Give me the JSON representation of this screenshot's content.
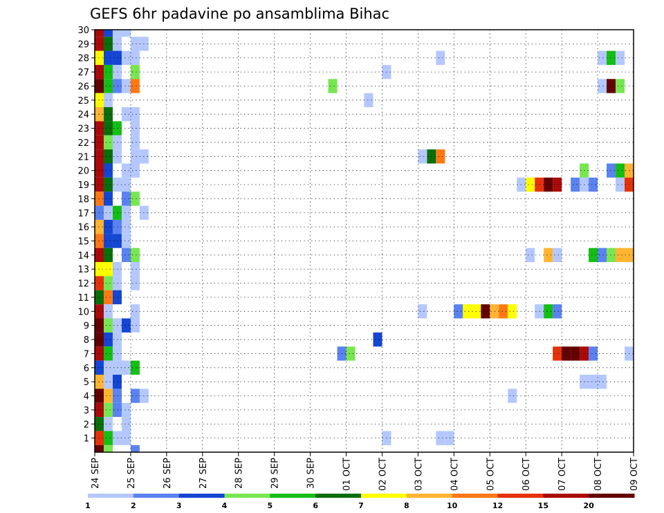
{
  "chart_data": {
    "type": "heatmap",
    "title": "GEFS 6hr padavine po ansamblima Bihac",
    "xlabel": "",
    "ylabel": "",
    "x_tick_labels": [
      "24 SEP",
      "25 SEP",
      "26 SEP",
      "27 SEP",
      "28 SEP",
      "29 SEP",
      "30 SEP",
      "01 OCT",
      "02 OCT",
      "03 OCT",
      "04 OCT",
      "05 OCT",
      "06 OCT",
      "07 OCT",
      "08 OCT",
      "09 OCT"
    ],
    "y_tick_labels": [
      "1",
      "2",
      "3",
      "4",
      "5",
      "6",
      "7",
      "8",
      "9",
      "10",
      "11",
      "12",
      "13",
      "14",
      "15",
      "16",
      "17",
      "18",
      "19",
      "20",
      "21",
      "22",
      "23",
      "24",
      "25",
      "26",
      "27",
      "28",
      "29",
      "30"
    ],
    "xlim": [
      0,
      60
    ],
    "ylim": [
      0,
      30
    ],
    "grid": "dotted",
    "colorbar": {
      "position": "bottom",
      "labels": [
        "1",
        "2",
        "3",
        "4",
        "5",
        "6",
        "7",
        "8",
        "10",
        "12",
        "15",
        "20"
      ],
      "colors": [
        "#b4c8ff",
        "#5a82f0",
        "#1446d2",
        "#78e650",
        "#14be14",
        "#0a6e0a",
        "#ffff00",
        "#ffb432",
        "#ff7814",
        "#e6320a",
        "#aa0a0a",
        "#640000"
      ]
    },
    "note_units": "x = 6-hour step index from 24 SEP 00h (4 steps per day); y = ensemble member; v = colour class index 0-11 matching colorbar.colors",
    "cells": [
      {
        "y": 30,
        "x": 0,
        "v": 10
      },
      {
        "y": 30,
        "x": 1,
        "v": 2
      },
      {
        "y": 30,
        "x": 2,
        "v": 0
      },
      {
        "y": 30,
        "x": 3,
        "v": 0
      },
      {
        "y": 29,
        "x": 0,
        "v": 10
      },
      {
        "y": 29,
        "x": 1,
        "v": 5
      },
      {
        "y": 29,
        "x": 2,
        "v": 0
      },
      {
        "y": 29,
        "x": 4,
        "v": 0
      },
      {
        "y": 29,
        "x": 5,
        "v": 0
      },
      {
        "y": 28,
        "x": 0,
        "v": 6
      },
      {
        "y": 28,
        "x": 1,
        "v": 2
      },
      {
        "y": 28,
        "x": 2,
        "v": 2
      },
      {
        "y": 28,
        "x": 3,
        "v": 0
      },
      {
        "y": 28,
        "x": 4,
        "v": 0
      },
      {
        "y": 28,
        "x": 38,
        "v": 0
      },
      {
        "y": 28,
        "x": 56,
        "v": 0
      },
      {
        "y": 28,
        "x": 57,
        "v": 4
      },
      {
        "y": 28,
        "x": 58,
        "v": 0
      },
      {
        "y": 27,
        "x": 0,
        "v": 10
      },
      {
        "y": 27,
        "x": 1,
        "v": 4
      },
      {
        "y": 27,
        "x": 2,
        "v": 0
      },
      {
        "y": 27,
        "x": 4,
        "v": 3
      },
      {
        "y": 27,
        "x": 32,
        "v": 0
      },
      {
        "y": 26,
        "x": 0,
        "v": 11
      },
      {
        "y": 26,
        "x": 1,
        "v": 4
      },
      {
        "y": 26,
        "x": 2,
        "v": 1
      },
      {
        "y": 26,
        "x": 3,
        "v": 0
      },
      {
        "y": 26,
        "x": 4,
        "v": 8
      },
      {
        "y": 26,
        "x": 26,
        "v": 3
      },
      {
        "y": 26,
        "x": 56,
        "v": 0
      },
      {
        "y": 26,
        "x": 57,
        "v": 11
      },
      {
        "y": 26,
        "x": 58,
        "v": 3
      },
      {
        "y": 25,
        "x": 0,
        "v": 6
      },
      {
        "y": 25,
        "x": 1,
        "v": 0
      },
      {
        "y": 25,
        "x": 30,
        "v": 0
      },
      {
        "y": 24,
        "x": 0,
        "v": 7
      },
      {
        "y": 24,
        "x": 1,
        "v": 5
      },
      {
        "y": 24,
        "x": 3,
        "v": 0
      },
      {
        "y": 24,
        "x": 4,
        "v": 0
      },
      {
        "y": 23,
        "x": 0,
        "v": 10
      },
      {
        "y": 23,
        "x": 1,
        "v": 5
      },
      {
        "y": 23,
        "x": 2,
        "v": 4
      },
      {
        "y": 23,
        "x": 4,
        "v": 0
      },
      {
        "y": 22,
        "x": 0,
        "v": 10
      },
      {
        "y": 22,
        "x": 1,
        "v": 3
      },
      {
        "y": 22,
        "x": 2,
        "v": 0
      },
      {
        "y": 22,
        "x": 4,
        "v": 0
      },
      {
        "y": 21,
        "x": 0,
        "v": 10
      },
      {
        "y": 21,
        "x": 1,
        "v": 5
      },
      {
        "y": 21,
        "x": 2,
        "v": 0
      },
      {
        "y": 21,
        "x": 4,
        "v": 0
      },
      {
        "y": 21,
        "x": 5,
        "v": 0
      },
      {
        "y": 21,
        "x": 36,
        "v": 0
      },
      {
        "y": 21,
        "x": 37,
        "v": 5
      },
      {
        "y": 21,
        "x": 38,
        "v": 8
      },
      {
        "y": 20,
        "x": 0,
        "v": 10
      },
      {
        "y": 20,
        "x": 1,
        "v": 2
      },
      {
        "y": 20,
        "x": 3,
        "v": 0
      },
      {
        "y": 20,
        "x": 4,
        "v": 0
      },
      {
        "y": 20,
        "x": 54,
        "v": 3
      },
      {
        "y": 20,
        "x": 57,
        "v": 1
      },
      {
        "y": 20,
        "x": 58,
        "v": 4
      },
      {
        "y": 20,
        "x": 59,
        "v": 7
      },
      {
        "y": 20,
        "x": 60,
        "v": 8
      },
      {
        "y": 19,
        "x": 0,
        "v": 10
      },
      {
        "y": 19,
        "x": 1,
        "v": 5
      },
      {
        "y": 19,
        "x": 2,
        "v": 0
      },
      {
        "y": 19,
        "x": 3,
        "v": 0
      },
      {
        "y": 19,
        "x": 47,
        "v": 0
      },
      {
        "y": 19,
        "x": 48,
        "v": 6
      },
      {
        "y": 19,
        "x": 49,
        "v": 9
      },
      {
        "y": 19,
        "x": 50,
        "v": 11
      },
      {
        "y": 19,
        "x": 51,
        "v": 10
      },
      {
        "y": 19,
        "x": 53,
        "v": 1
      },
      {
        "y": 19,
        "x": 54,
        "v": 0
      },
      {
        "y": 19,
        "x": 55,
        "v": 1
      },
      {
        "y": 19,
        "x": 58,
        "v": 0
      },
      {
        "y": 19,
        "x": 59,
        "v": 9
      },
      {
        "y": 19,
        "x": 60,
        "v": 11
      },
      {
        "y": 18,
        "x": 0,
        "v": 8
      },
      {
        "y": 18,
        "x": 1,
        "v": 2
      },
      {
        "y": 18,
        "x": 3,
        "v": 1
      },
      {
        "y": 18,
        "x": 4,
        "v": 3
      },
      {
        "y": 17,
        "x": 0,
        "v": 1
      },
      {
        "y": 17,
        "x": 1,
        "v": 0
      },
      {
        "y": 17,
        "x": 2,
        "v": 4
      },
      {
        "y": 17,
        "x": 3,
        "v": 0
      },
      {
        "y": 17,
        "x": 5,
        "v": 0
      },
      {
        "y": 16,
        "x": 0,
        "v": 7
      },
      {
        "y": 16,
        "x": 1,
        "v": 2
      },
      {
        "y": 16,
        "x": 2,
        "v": 1
      },
      {
        "y": 16,
        "x": 3,
        "v": 0
      },
      {
        "y": 15,
        "x": 0,
        "v": 8
      },
      {
        "y": 15,
        "x": 1,
        "v": 2
      },
      {
        "y": 15,
        "x": 2,
        "v": 2
      },
      {
        "y": 15,
        "x": 3,
        "v": 0
      },
      {
        "y": 14,
        "x": 0,
        "v": 10
      },
      {
        "y": 14,
        "x": 1,
        "v": 5
      },
      {
        "y": 14,
        "x": 3,
        "v": 1
      },
      {
        "y": 14,
        "x": 4,
        "v": 3
      },
      {
        "y": 14,
        "x": 48,
        "v": 0
      },
      {
        "y": 14,
        "x": 50,
        "v": 7
      },
      {
        "y": 14,
        "x": 51,
        "v": 0
      },
      {
        "y": 14,
        "x": 55,
        "v": 4
      },
      {
        "y": 14,
        "x": 56,
        "v": 1
      },
      {
        "y": 14,
        "x": 57,
        "v": 3
      },
      {
        "y": 14,
        "x": 58,
        "v": 7
      },
      {
        "y": 14,
        "x": 59,
        "v": 7
      },
      {
        "y": 13,
        "x": 0,
        "v": 6
      },
      {
        "y": 13,
        "x": 1,
        "v": 6
      },
      {
        "y": 13,
        "x": 2,
        "v": 0
      },
      {
        "y": 13,
        "x": 4,
        "v": 0
      },
      {
        "y": 12,
        "x": 0,
        "v": 9
      },
      {
        "y": 12,
        "x": 1,
        "v": 3
      },
      {
        "y": 12,
        "x": 2,
        "v": 0
      },
      {
        "y": 12,
        "x": 4,
        "v": 0
      },
      {
        "y": 11,
        "x": 0,
        "v": 5
      },
      {
        "y": 11,
        "x": 1,
        "v": 8
      },
      {
        "y": 11,
        "x": 2,
        "v": 2
      },
      {
        "y": 10,
        "x": 0,
        "v": 10
      },
      {
        "y": 10,
        "x": 1,
        "v": 0
      },
      {
        "y": 10,
        "x": 4,
        "v": 0
      },
      {
        "y": 10,
        "x": 36,
        "v": 0
      },
      {
        "y": 10,
        "x": 40,
        "v": 1
      },
      {
        "y": 10,
        "x": 41,
        "v": 6
      },
      {
        "y": 10,
        "x": 42,
        "v": 6
      },
      {
        "y": 10,
        "x": 43,
        "v": 11
      },
      {
        "y": 10,
        "x": 44,
        "v": 7
      },
      {
        "y": 10,
        "x": 45,
        "v": 8
      },
      {
        "y": 10,
        "x": 46,
        "v": 6
      },
      {
        "y": 10,
        "x": 49,
        "v": 0
      },
      {
        "y": 10,
        "x": 50,
        "v": 4
      },
      {
        "y": 10,
        "x": 51,
        "v": 1
      },
      {
        "y": 9,
        "x": 0,
        "v": 11
      },
      {
        "y": 9,
        "x": 1,
        "v": 3
      },
      {
        "y": 9,
        "x": 2,
        "v": 0
      },
      {
        "y": 9,
        "x": 3,
        "v": 2
      },
      {
        "y": 9,
        "x": 4,
        "v": 0
      },
      {
        "y": 8,
        "x": 0,
        "v": 11
      },
      {
        "y": 8,
        "x": 1,
        "v": 2
      },
      {
        "y": 8,
        "x": 2,
        "v": 0
      },
      {
        "y": 8,
        "x": 31,
        "v": 2
      },
      {
        "y": 7,
        "x": 0,
        "v": 10
      },
      {
        "y": 7,
        "x": 1,
        "v": 4
      },
      {
        "y": 7,
        "x": 2,
        "v": 0
      },
      {
        "y": 7,
        "x": 27,
        "v": 1
      },
      {
        "y": 7,
        "x": 28,
        "v": 3
      },
      {
        "y": 7,
        "x": 51,
        "v": 9
      },
      {
        "y": 7,
        "x": 52,
        "v": 11
      },
      {
        "y": 7,
        "x": 53,
        "v": 11
      },
      {
        "y": 7,
        "x": 54,
        "v": 10
      },
      {
        "y": 7,
        "x": 55,
        "v": 1
      },
      {
        "y": 7,
        "x": 59,
        "v": 0
      },
      {
        "y": 6,
        "x": 0,
        "v": 2
      },
      {
        "y": 6,
        "x": 1,
        "v": 0
      },
      {
        "y": 6,
        "x": 2,
        "v": 0
      },
      {
        "y": 6,
        "x": 3,
        "v": 0
      },
      {
        "y": 6,
        "x": 4,
        "v": 4
      },
      {
        "y": 5,
        "x": 0,
        "v": 7
      },
      {
        "y": 5,
        "x": 1,
        "v": 0
      },
      {
        "y": 5,
        "x": 2,
        "v": 2
      },
      {
        "y": 5,
        "x": 54,
        "v": 0
      },
      {
        "y": 5,
        "x": 55,
        "v": 0
      },
      {
        "y": 5,
        "x": 56,
        "v": 0
      },
      {
        "y": 4,
        "x": 0,
        "v": 11
      },
      {
        "y": 4,
        "x": 1,
        "v": 7
      },
      {
        "y": 4,
        "x": 2,
        "v": 1
      },
      {
        "y": 4,
        "x": 4,
        "v": 1
      },
      {
        "y": 4,
        "x": 5,
        "v": 0
      },
      {
        "y": 4,
        "x": 46,
        "v": 0
      },
      {
        "y": 3,
        "x": 0,
        "v": 10
      },
      {
        "y": 3,
        "x": 1,
        "v": 3
      },
      {
        "y": 3,
        "x": 2,
        "v": 1
      },
      {
        "y": 3,
        "x": 3,
        "v": 0
      },
      {
        "y": 2,
        "x": 0,
        "v": 5
      },
      {
        "y": 2,
        "x": 1,
        "v": 0
      },
      {
        "y": 2,
        "x": 3,
        "v": 0
      },
      {
        "y": 1,
        "x": 0,
        "v": 9
      },
      {
        "y": 1,
        "x": 1,
        "v": 4
      },
      {
        "y": 1,
        "x": 2,
        "v": 0
      },
      {
        "y": 1,
        "x": 3,
        "v": 0
      },
      {
        "y": 1,
        "x": 32,
        "v": 0
      },
      {
        "y": 1,
        "x": 38,
        "v": 0
      },
      {
        "y": 1,
        "x": 39,
        "v": 0
      },
      {
        "y": 0,
        "x": 0,
        "v": 11
      },
      {
        "y": 0,
        "x": 1,
        "v": 3
      },
      {
        "y": 0,
        "x": 4,
        "v": 1
      }
    ]
  }
}
